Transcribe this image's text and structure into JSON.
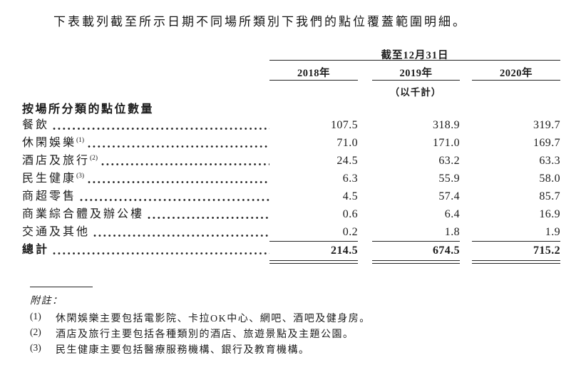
{
  "intro": "下表載列截至所示日期不同場所類別下我們的點位覆蓋範圍明細。",
  "table": {
    "period_header": "截至12月31日",
    "columns": [
      "2018年",
      "2019年",
      "2020年"
    ],
    "unit_note": "（以千計）",
    "section_header": "按場所分類的點位數量",
    "rows": [
      {
        "label": "餐飲",
        "sup": "",
        "v2018": "107.5",
        "v2019": "318.9",
        "v2020": "319.7"
      },
      {
        "label": "休閑娛樂",
        "sup": "(1)",
        "v2018": "71.0",
        "v2019": "171.0",
        "v2020": "169.7"
      },
      {
        "label": "酒店及旅行",
        "sup": "(2)",
        "v2018": "24.5",
        "v2019": "63.2",
        "v2020": "63.3"
      },
      {
        "label": "民生健康",
        "sup": "(3)",
        "v2018": "6.3",
        "v2019": "55.9",
        "v2020": "58.0"
      },
      {
        "label": "商超零售",
        "sup": "",
        "v2018": "4.5",
        "v2019": "57.4",
        "v2020": "85.7"
      },
      {
        "label": "商業綜合體及辦公樓",
        "sup": "",
        "v2018": "0.6",
        "v2019": "6.4",
        "v2020": "16.9"
      },
      {
        "label": "交通及其他",
        "sup": "",
        "v2018": "0.2",
        "v2019": "1.8",
        "v2020": "1.9"
      }
    ],
    "total": {
      "label": "總計",
      "v2018": "214.5",
      "v2019": "674.5",
      "v2020": "715.2"
    }
  },
  "footnotes": {
    "title": "附註：",
    "items": [
      {
        "marker": "(1)",
        "text": "休閑娛樂主要包括電影院、卡拉OK中心、網吧、酒吧及健身房。"
      },
      {
        "marker": "(2)",
        "text": "酒店及旅行主要包括各種類別的酒店、旅遊景點及主題公園。"
      },
      {
        "marker": "(3)",
        "text": "民生健康主要包括醫療服務機構、銀行及教育機構。"
      }
    ]
  },
  "colors": {
    "text": "#1c1c1c",
    "rule": "#242424",
    "background": "#ffffff"
  }
}
